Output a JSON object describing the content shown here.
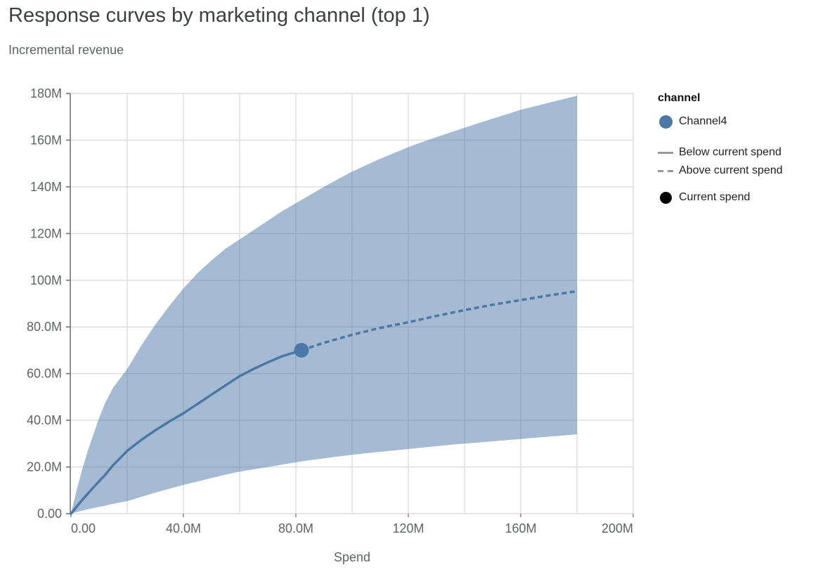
{
  "header": {
    "title": "Response curves by marketing channel (top 1)",
    "subtitle": "Incremental revenue"
  },
  "legend": {
    "title": "channel",
    "channel_item": {
      "label": "Channel4",
      "color": "#4c78a8"
    },
    "below_item": {
      "label": "Below current spend",
      "style": "solid",
      "color": "#999999"
    },
    "above_item": {
      "label": "Above current spend",
      "style": "dashed",
      "color": "#999999"
    },
    "point_item": {
      "label": "Current spend",
      "color": "#000000"
    }
  },
  "chart_data": {
    "type": "area",
    "title": "Response curves by marketing channel (top 1)",
    "subtitle": "Incremental revenue",
    "xlabel": "Spend",
    "ylabel": "Incremental revenue",
    "x_domain": [
      0,
      200
    ],
    "y_domain": [
      0,
      180
    ],
    "grid_step_x": 20,
    "grid_step_y": 20,
    "grid_on": true,
    "legend_position": "right",
    "units": "millions",
    "x_axis": {
      "title": "Spend",
      "ticks": [
        {
          "value": 0,
          "label": "0.00"
        },
        {
          "value": 40,
          "label": "40.0M"
        },
        {
          "value": 80,
          "label": "80.0M"
        },
        {
          "value": 120,
          "label": "120M"
        },
        {
          "value": 160,
          "label": "160M"
        },
        {
          "value": 200,
          "label": "200M"
        }
      ]
    },
    "y_axis": {
      "title": "Incremental revenue",
      "ticks": [
        {
          "value": 0,
          "label": "0.00"
        },
        {
          "value": 20,
          "label": "20.0M"
        },
        {
          "value": 40,
          "label": "40.0M"
        },
        {
          "value": 60,
          "label": "60.0M"
        },
        {
          "value": 80,
          "label": "80.0M"
        },
        {
          "value": 100,
          "label": "100M"
        },
        {
          "value": 120,
          "label": "120M"
        },
        {
          "value": 140,
          "label": "140M"
        },
        {
          "value": 160,
          "label": "160M"
        },
        {
          "value": 180,
          "label": "180M"
        }
      ]
    },
    "series": [
      {
        "name": "ci_upper",
        "role": "band-upper",
        "channel": "Channel4",
        "points": [
          [
            0,
            0
          ],
          [
            2,
            10
          ],
          [
            4,
            19
          ],
          [
            6,
            27
          ],
          [
            8,
            34
          ],
          [
            10,
            41
          ],
          [
            12,
            47
          ],
          [
            15,
            54
          ],
          [
            20,
            62
          ],
          [
            25,
            72
          ],
          [
            30,
            81
          ],
          [
            35,
            89
          ],
          [
            40,
            96.5
          ],
          [
            45,
            103
          ],
          [
            50,
            108.5
          ],
          [
            55,
            113.5
          ],
          [
            60,
            117.5
          ],
          [
            65,
            121.5
          ],
          [
            70,
            125.5
          ],
          [
            75,
            129.5
          ],
          [
            80,
            133
          ],
          [
            85,
            136.5
          ],
          [
            90,
            140
          ],
          [
            95,
            143.3
          ],
          [
            100,
            146.5
          ],
          [
            105,
            149.3
          ],
          [
            110,
            152
          ],
          [
            115,
            154.5
          ],
          [
            120,
            157
          ],
          [
            125,
            159.2
          ],
          [
            130,
            161.3
          ],
          [
            135,
            163.3
          ],
          [
            140,
            165.3
          ],
          [
            145,
            167.3
          ],
          [
            150,
            169.2
          ],
          [
            155,
            171.1
          ],
          [
            160,
            173
          ],
          [
            165,
            174.5
          ],
          [
            170,
            176
          ],
          [
            175,
            177.5
          ],
          [
            180,
            179
          ]
        ]
      },
      {
        "name": "ci_lower",
        "role": "band-lower",
        "channel": "Channel4",
        "points": [
          [
            0,
            0
          ],
          [
            2,
            0.7
          ],
          [
            4,
            1.3
          ],
          [
            6,
            1.9
          ],
          [
            8,
            2.4
          ],
          [
            10,
            2.9
          ],
          [
            12,
            3.4
          ],
          [
            15,
            4.2
          ],
          [
            20,
            5.4
          ],
          [
            25,
            7.2
          ],
          [
            30,
            9
          ],
          [
            35,
            10.7
          ],
          [
            40,
            12.3
          ],
          [
            45,
            13.8
          ],
          [
            50,
            15.3
          ],
          [
            55,
            16.7
          ],
          [
            60,
            18
          ],
          [
            65,
            19
          ],
          [
            70,
            20
          ],
          [
            75,
            21
          ],
          [
            80,
            22
          ],
          [
            85,
            22.9
          ],
          [
            90,
            23.7
          ],
          [
            95,
            24.5
          ],
          [
            100,
            25.2
          ],
          [
            105,
            25.9
          ],
          [
            110,
            26.5
          ],
          [
            115,
            27.1
          ],
          [
            120,
            27.7
          ],
          [
            125,
            28.3
          ],
          [
            130,
            28.9
          ],
          [
            135,
            29.5
          ],
          [
            140,
            30
          ],
          [
            145,
            30.5
          ],
          [
            150,
            31
          ],
          [
            155,
            31.5
          ],
          [
            160,
            32
          ],
          [
            165,
            32.5
          ],
          [
            170,
            33
          ],
          [
            175,
            33.5
          ],
          [
            180,
            34
          ]
        ]
      },
      {
        "name": "below_current_spend",
        "role": "mid-solid",
        "channel": "Channel4",
        "points": [
          [
            0,
            0
          ],
          [
            2,
            3
          ],
          [
            4,
            5.9
          ],
          [
            6,
            8.6
          ],
          [
            8,
            11.3
          ],
          [
            10,
            13.9
          ],
          [
            12,
            16.4
          ],
          [
            15,
            20.8
          ],
          [
            20,
            26.9
          ],
          [
            25,
            31.6
          ],
          [
            30,
            35.7
          ],
          [
            35,
            39.5
          ],
          [
            40,
            43
          ],
          [
            45,
            47
          ],
          [
            50,
            51
          ],
          [
            55,
            55
          ],
          [
            60,
            58.9
          ],
          [
            65,
            62
          ],
          [
            70,
            64.8
          ],
          [
            75,
            67.4
          ],
          [
            82,
            70
          ]
        ]
      },
      {
        "name": "above_current_spend",
        "role": "mid-dashed",
        "channel": "Channel4",
        "points": [
          [
            82,
            70
          ],
          [
            90,
            73.2
          ],
          [
            100,
            76.6
          ],
          [
            110,
            79.6
          ],
          [
            120,
            82
          ],
          [
            130,
            84.7
          ],
          [
            140,
            87.2
          ],
          [
            150,
            89.5
          ],
          [
            160,
            91.5
          ],
          [
            170,
            93.5
          ],
          [
            180,
            95.3
          ]
        ]
      }
    ],
    "current_spend_point": {
      "x": 82,
      "y": 70
    },
    "colors": {
      "band_fill": "#4c78a8",
      "band_opacity": 0.5,
      "line": "#4c78a8",
      "point": "#4c78a8",
      "legend_point": "#000000",
      "grid": "#dddddd",
      "axis": "#6b6b6b",
      "tick_label": "#5f6368",
      "title": "#3c4043"
    }
  }
}
